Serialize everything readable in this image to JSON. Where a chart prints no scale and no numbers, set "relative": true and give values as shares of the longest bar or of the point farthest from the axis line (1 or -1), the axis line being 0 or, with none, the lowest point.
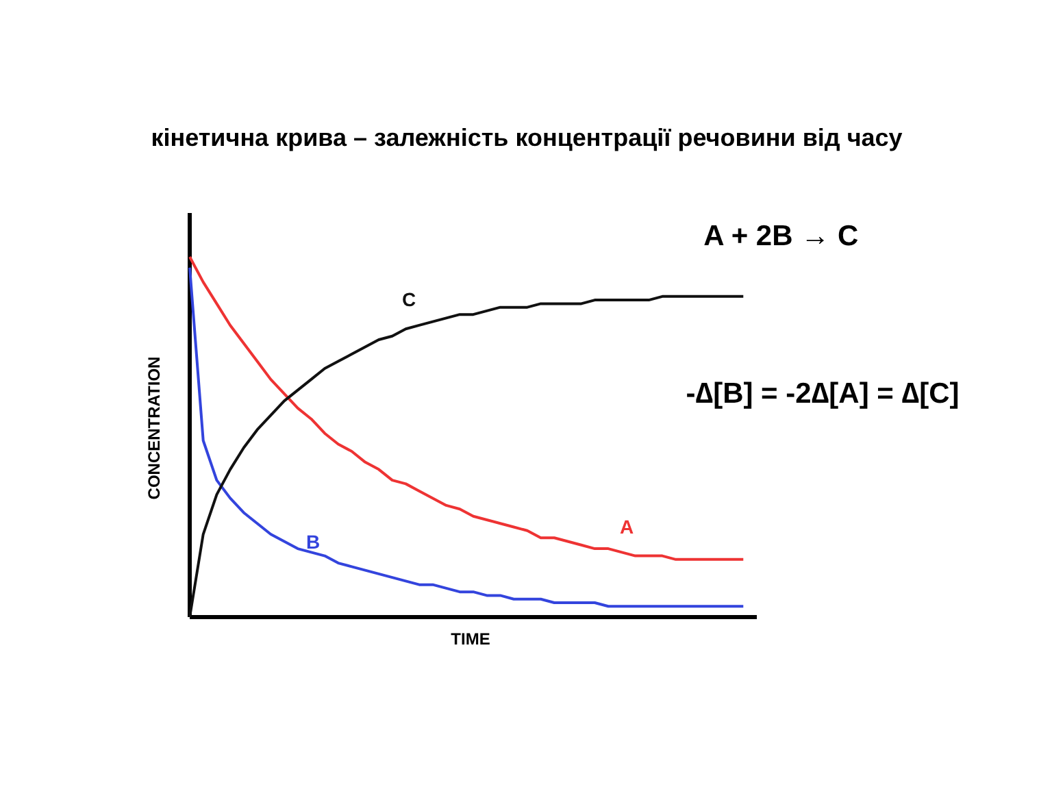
{
  "chart_data": {
    "type": "line",
    "relative": true,
    "title": "кінетична крива – залежність концентрації речовини від часу",
    "xlabel": "TIME",
    "ylabel": "CONCENTRATION",
    "categories": [
      null,
      null,
      null,
      null,
      null,
      null,
      null,
      null,
      null,
      null,
      null,
      null,
      null,
      null,
      null,
      null,
      null,
      null,
      null,
      null,
      null,
      null,
      null,
      null,
      null,
      null,
      null,
      null,
      null,
      null,
      null,
      null,
      null,
      null,
      null,
      null,
      null,
      null,
      null,
      null,
      null,
      null
    ],
    "series": [
      {
        "name": "A",
        "color": "#ee3333",
        "values": [
          1.0,
          0.93,
          0.87,
          0.81,
          0.76,
          0.71,
          0.66,
          0.62,
          0.58,
          0.55,
          0.51,
          0.48,
          0.46,
          0.43,
          0.41,
          0.38,
          0.37,
          0.35,
          0.33,
          0.31,
          0.3,
          0.28,
          0.27,
          0.26,
          0.25,
          0.24,
          0.22,
          0.22,
          0.21,
          0.2,
          0.19,
          0.19,
          0.18,
          0.17,
          0.17,
          0.17,
          0.16,
          0.16,
          0.16,
          0.16,
          0.16,
          0.16
        ]
      },
      {
        "name": "B",
        "color": "#3344dd",
        "values": [
          0.97,
          0.49,
          0.38,
          0.33,
          0.29,
          0.26,
          0.23,
          0.21,
          0.19,
          0.18,
          0.17,
          0.15,
          0.14,
          0.13,
          0.12,
          0.11,
          0.1,
          0.09,
          0.09,
          0.08,
          0.07,
          0.07,
          0.06,
          0.06,
          0.05,
          0.05,
          0.05,
          0.04,
          0.04,
          0.04,
          0.04,
          0.03,
          0.03,
          0.03,
          0.03,
          0.03,
          0.03,
          0.03,
          0.03,
          0.03,
          0.03,
          0.03
        ]
      },
      {
        "name": "C",
        "color": "#111111",
        "values": [
          0,
          0.23,
          0.34,
          0.41,
          0.47,
          0.52,
          0.56,
          0.6,
          0.63,
          0.66,
          0.69,
          0.71,
          0.73,
          0.75,
          0.77,
          0.78,
          0.8,
          0.81,
          0.82,
          0.83,
          0.84,
          0.84,
          0.85,
          0.86,
          0.86,
          0.86,
          0.87,
          0.87,
          0.87,
          0.87,
          0.88,
          0.88,
          0.88,
          0.88,
          0.88,
          0.89,
          0.89,
          0.89,
          0.89,
          0.89,
          0.89,
          0.89
        ]
      }
    ],
    "annotations": [
      "A + 2B → C",
      "-∆[B] = -2∆[A] = ∆[C]"
    ],
    "grid": false,
    "marker": "none",
    "line_style": "solid"
  }
}
